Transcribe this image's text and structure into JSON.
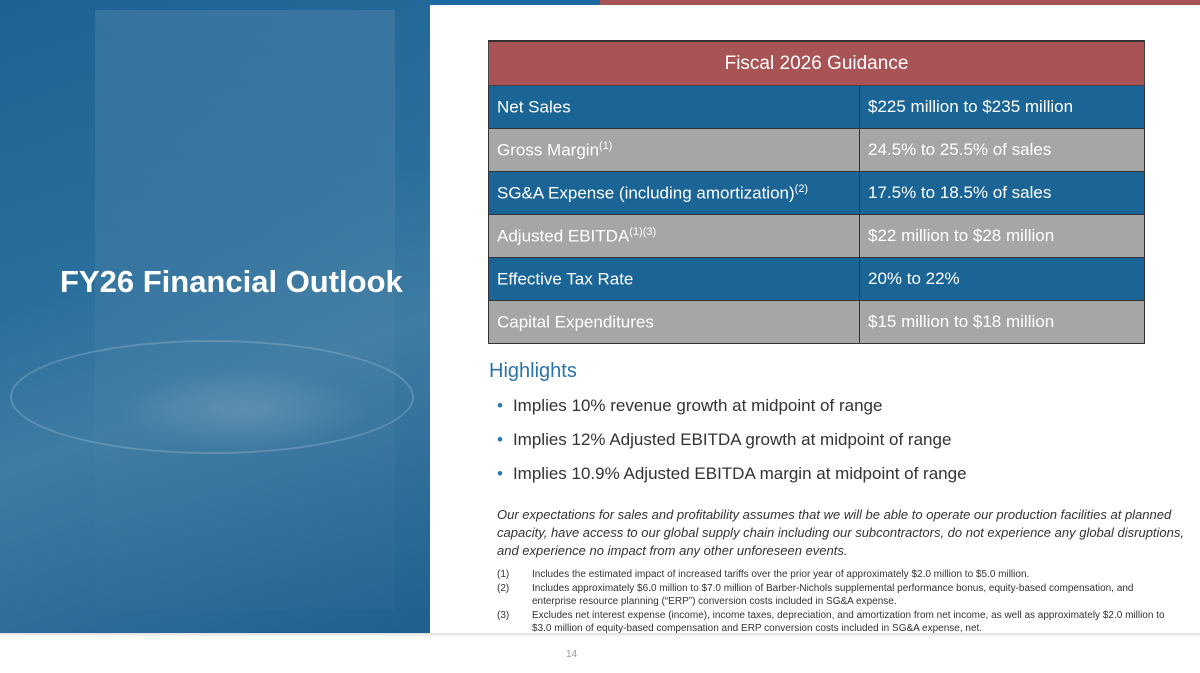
{
  "slide_title": "FY26 Financial Outlook",
  "table": {
    "header": "Fiscal 2026 Guidance",
    "rows": [
      {
        "label": "Net Sales",
        "sup": "",
        "value": "$225 million to $235 million"
      },
      {
        "label": "Gross Margin",
        "sup": "(1)",
        "value": "24.5% to 25.5% of sales"
      },
      {
        "label": "SG&A Expense (including amortization)",
        "sup": "(2)",
        "value": "17.5% to 18.5% of sales"
      },
      {
        "label": "Adjusted EBITDA",
        "sup": "(1)(3)",
        "value": "$22 million to $28 million"
      },
      {
        "label": "Effective Tax Rate",
        "sup": "",
        "value": "20% to 22%"
      },
      {
        "label": "Capital Expenditures",
        "sup": "",
        "value": "$15 million to $18 million"
      }
    ]
  },
  "highlights": {
    "heading": "Highlights",
    "items": [
      "Implies 10% revenue growth at midpoint of range",
      "Implies 12% Adjusted EBITDA growth at midpoint of range",
      "Implies 10.9% Adjusted EBITDA margin at midpoint of range"
    ]
  },
  "disclaimer": "Our expectations for sales and profitability assumes that we will be able to operate our production facilities at planned capacity, have access to our global supply chain including our subcontractors, do not experience any global disruptions, and experience no impact from any other unforeseen events.",
  "footnotes": [
    {
      "num": "(1)",
      "text": "Includes the estimated impact of increased tariffs over the prior year of approximately $2.0 million to $5.0 million."
    },
    {
      "num": "(2)",
      "text": "Includes approximately $6.0 million to $7.0 million of Barber-Nichols supplemental performance bonus, equity-based compensation, and enterprise resource planning (“ERP”) conversion costs included in SG&A expense."
    },
    {
      "num": "(3)",
      "text": "Excludes net interest expense (income), income taxes, depreciation, and amortization from net income, as well as approximately $2.0 million to $3.0 million of equity-based compensation and ERP conversion costs included in SG&A expense, net."
    }
  ],
  "page_number": "14",
  "colors": {
    "blue": "#1a6496",
    "red": "#a85355",
    "gray": "#a6a6a6"
  }
}
